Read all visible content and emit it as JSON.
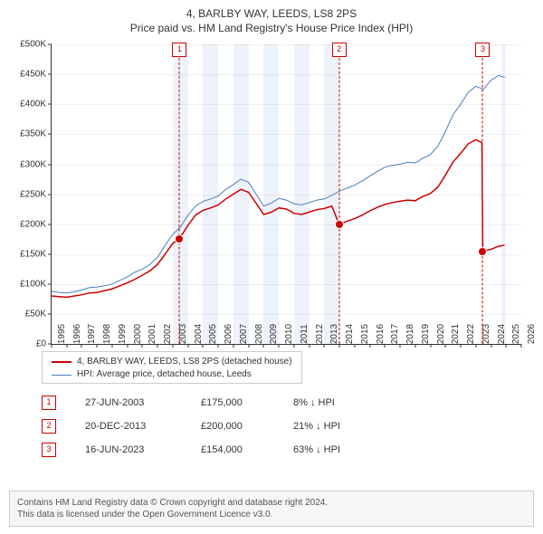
{
  "title": {
    "line1": "4, BARLBY WAY, LEEDS, LS8 2PS",
    "line2": "Price paid vs. HM Land Registry's House Price Index (HPI)"
  },
  "chart": {
    "type": "line",
    "background_color": "#ffffff",
    "grid_color": "rgba(0,0,0,0.06)",
    "axis_color": "#333333",
    "tick_font_size": 10,
    "x": {
      "min": 1995.0,
      "max": 2026.0,
      "ticks": [
        1995,
        1996,
        1997,
        1998,
        1999,
        2000,
        2001,
        2002,
        2003,
        2004,
        2005,
        2006,
        2007,
        2008,
        2009,
        2010,
        2011,
        2012,
        2013,
        2014,
        2015,
        2016,
        2017,
        2018,
        2019,
        2020,
        2021,
        2022,
        2023,
        2024,
        2025,
        2026
      ],
      "bands": [
        {
          "from": 2003,
          "to": 2004,
          "color": "#eef3fa"
        },
        {
          "from": 2005,
          "to": 2006,
          "color": "#eef3fa"
        },
        {
          "from": 2007,
          "to": 2008,
          "color": "#eef3fa"
        },
        {
          "from": 2009,
          "to": 2010,
          "color": "#eef3fa"
        },
        {
          "from": 2011,
          "to": 2012,
          "color": "#eef3fa"
        },
        {
          "from": 2013,
          "to": 2014,
          "color": "#eef3fa"
        },
        {
          "from": 2024.7,
          "to": 2025.0,
          "color": "#eef3fa"
        }
      ]
    },
    "y": {
      "min": 0,
      "max": 500000,
      "ticks": [
        0,
        50000,
        100000,
        150000,
        200000,
        250000,
        300000,
        350000,
        400000,
        450000,
        500000
      ],
      "tick_labels": [
        "£0",
        "£50K",
        "£100K",
        "£150K",
        "£200K",
        "£250K",
        "£300K",
        "£350K",
        "£400K",
        "£450K",
        "£500K"
      ]
    },
    "series": [
      {
        "name": "HPI: Average price, detached house, Leeds",
        "color": "#4a7ebb",
        "width": 1,
        "points": [
          [
            1995.0,
            88000
          ],
          [
            1995.5,
            86000
          ],
          [
            1996.0,
            85000
          ],
          [
            1996.5,
            87000
          ],
          [
            1997.0,
            90000
          ],
          [
            1997.5,
            94000
          ],
          [
            1998.0,
            95000
          ],
          [
            1998.5,
            97000
          ],
          [
            1999.0,
            100000
          ],
          [
            1999.5,
            106000
          ],
          [
            2000.0,
            112000
          ],
          [
            2000.5,
            120000
          ],
          [
            2001.0,
            125000
          ],
          [
            2001.5,
            133000
          ],
          [
            2002.0,
            145000
          ],
          [
            2002.5,
            165000
          ],
          [
            2003.0,
            183000
          ],
          [
            2003.5,
            195000
          ],
          [
            2004.0,
            215000
          ],
          [
            2004.5,
            230000
          ],
          [
            2005.0,
            238000
          ],
          [
            2005.5,
            242000
          ],
          [
            2006.0,
            247000
          ],
          [
            2006.5,
            258000
          ],
          [
            2007.0,
            266000
          ],
          [
            2007.5,
            275000
          ],
          [
            2008.0,
            270000
          ],
          [
            2008.5,
            250000
          ],
          [
            2009.0,
            230000
          ],
          [
            2009.5,
            235000
          ],
          [
            2010.0,
            243000
          ],
          [
            2010.5,
            240000
          ],
          [
            2011.0,
            234000
          ],
          [
            2011.5,
            232000
          ],
          [
            2012.0,
            236000
          ],
          [
            2012.5,
            240000
          ],
          [
            2013.0,
            242000
          ],
          [
            2013.5,
            248000
          ],
          [
            2014.0,
            255000
          ],
          [
            2014.5,
            260000
          ],
          [
            2015.0,
            265000
          ],
          [
            2015.5,
            272000
          ],
          [
            2016.0,
            280000
          ],
          [
            2016.5,
            288000
          ],
          [
            2017.0,
            295000
          ],
          [
            2017.5,
            298000
          ],
          [
            2018.0,
            300000
          ],
          [
            2018.5,
            303000
          ],
          [
            2019.0,
            302000
          ],
          [
            2019.5,
            310000
          ],
          [
            2020.0,
            316000
          ],
          [
            2020.5,
            330000
          ],
          [
            2021.0,
            355000
          ],
          [
            2021.5,
            383000
          ],
          [
            2022.0,
            400000
          ],
          [
            2022.5,
            420000
          ],
          [
            2023.0,
            430000
          ],
          [
            2023.5,
            425000
          ],
          [
            2024.0,
            440000
          ],
          [
            2024.5,
            448000
          ],
          [
            2024.9,
            445000
          ]
        ]
      },
      {
        "name": "4, BARLBY WAY, LEEDS, LS8 2PS (detached house)",
        "color": "#cc0000",
        "width": 1.5,
        "points": [
          [
            1995.0,
            80000
          ],
          [
            1995.5,
            79000
          ],
          [
            1996.0,
            78000
          ],
          [
            1996.5,
            80000
          ],
          [
            1997.0,
            82000
          ],
          [
            1997.5,
            85000
          ],
          [
            1998.0,
            86000
          ],
          [
            1998.5,
            89000
          ],
          [
            1999.0,
            92000
          ],
          [
            1999.5,
            97000
          ],
          [
            2000.0,
            102000
          ],
          [
            2000.5,
            108000
          ],
          [
            2001.0,
            115000
          ],
          [
            2001.5,
            122000
          ],
          [
            2002.0,
            133000
          ],
          [
            2002.5,
            150000
          ],
          [
            2003.0,
            168000
          ],
          [
            2003.45,
            175000
          ],
          [
            2003.5,
            178000
          ],
          [
            2004.0,
            198000
          ],
          [
            2004.5,
            215000
          ],
          [
            2005.0,
            223000
          ],
          [
            2005.5,
            227000
          ],
          [
            2006.0,
            232000
          ],
          [
            2006.5,
            242000
          ],
          [
            2007.0,
            250000
          ],
          [
            2007.5,
            258000
          ],
          [
            2008.0,
            253000
          ],
          [
            2008.5,
            235000
          ],
          [
            2009.0,
            216000
          ],
          [
            2009.5,
            220000
          ],
          [
            2010.0,
            227000
          ],
          [
            2010.5,
            225000
          ],
          [
            2011.0,
            218000
          ],
          [
            2011.5,
            216000
          ],
          [
            2012.0,
            220000
          ],
          [
            2012.5,
            224000
          ],
          [
            2013.0,
            226000
          ],
          [
            2013.5,
            230000
          ],
          [
            2013.97,
            200000
          ],
          [
            2014.0,
            200000
          ],
          [
            2014.5,
            205000
          ],
          [
            2015.0,
            209000
          ],
          [
            2015.5,
            215000
          ],
          [
            2016.0,
            222000
          ],
          [
            2016.5,
            228000
          ],
          [
            2017.0,
            233000
          ],
          [
            2017.5,
            236000
          ],
          [
            2018.0,
            238000
          ],
          [
            2018.5,
            240000
          ],
          [
            2019.0,
            239000
          ],
          [
            2019.5,
            246000
          ],
          [
            2020.0,
            251000
          ],
          [
            2020.5,
            262000
          ],
          [
            2021.0,
            282000
          ],
          [
            2021.5,
            304000
          ],
          [
            2022.0,
            318000
          ],
          [
            2022.5,
            334000
          ],
          [
            2023.0,
            341000
          ],
          [
            2023.4,
            336000
          ],
          [
            2023.46,
            154000
          ],
          [
            2023.5,
            155000
          ],
          [
            2024.0,
            158000
          ],
          [
            2024.5,
            163000
          ],
          [
            2024.9,
            165000
          ]
        ]
      }
    ],
    "sale_markers": [
      {
        "n": "1",
        "x": 2003.45,
        "y": 175000
      },
      {
        "n": "2",
        "x": 2013.97,
        "y": 200000
      },
      {
        "n": "3",
        "x": 2023.46,
        "y": 154000
      }
    ]
  },
  "legend": {
    "items": [
      {
        "color": "#cc0000",
        "label": "4, BARLBY WAY, LEEDS, LS8 2PS (detached house)"
      },
      {
        "color": "#4a7ebb",
        "label": "HPI: Average price, detached house, Leeds"
      }
    ]
  },
  "sales": [
    {
      "n": "1",
      "date": "27-JUN-2003",
      "price": "£175,000",
      "diff": "8% ↓ HPI"
    },
    {
      "n": "2",
      "date": "20-DEC-2013",
      "price": "£200,000",
      "diff": "21% ↓ HPI"
    },
    {
      "n": "3",
      "date": "16-JUN-2023",
      "price": "£154,000",
      "diff": "63% ↓ HPI"
    }
  ],
  "footer": {
    "line1": "Contains HM Land Registry data © Crown copyright and database right 2024.",
    "line2": "This data is licensed under the Open Government Licence v3.0."
  }
}
